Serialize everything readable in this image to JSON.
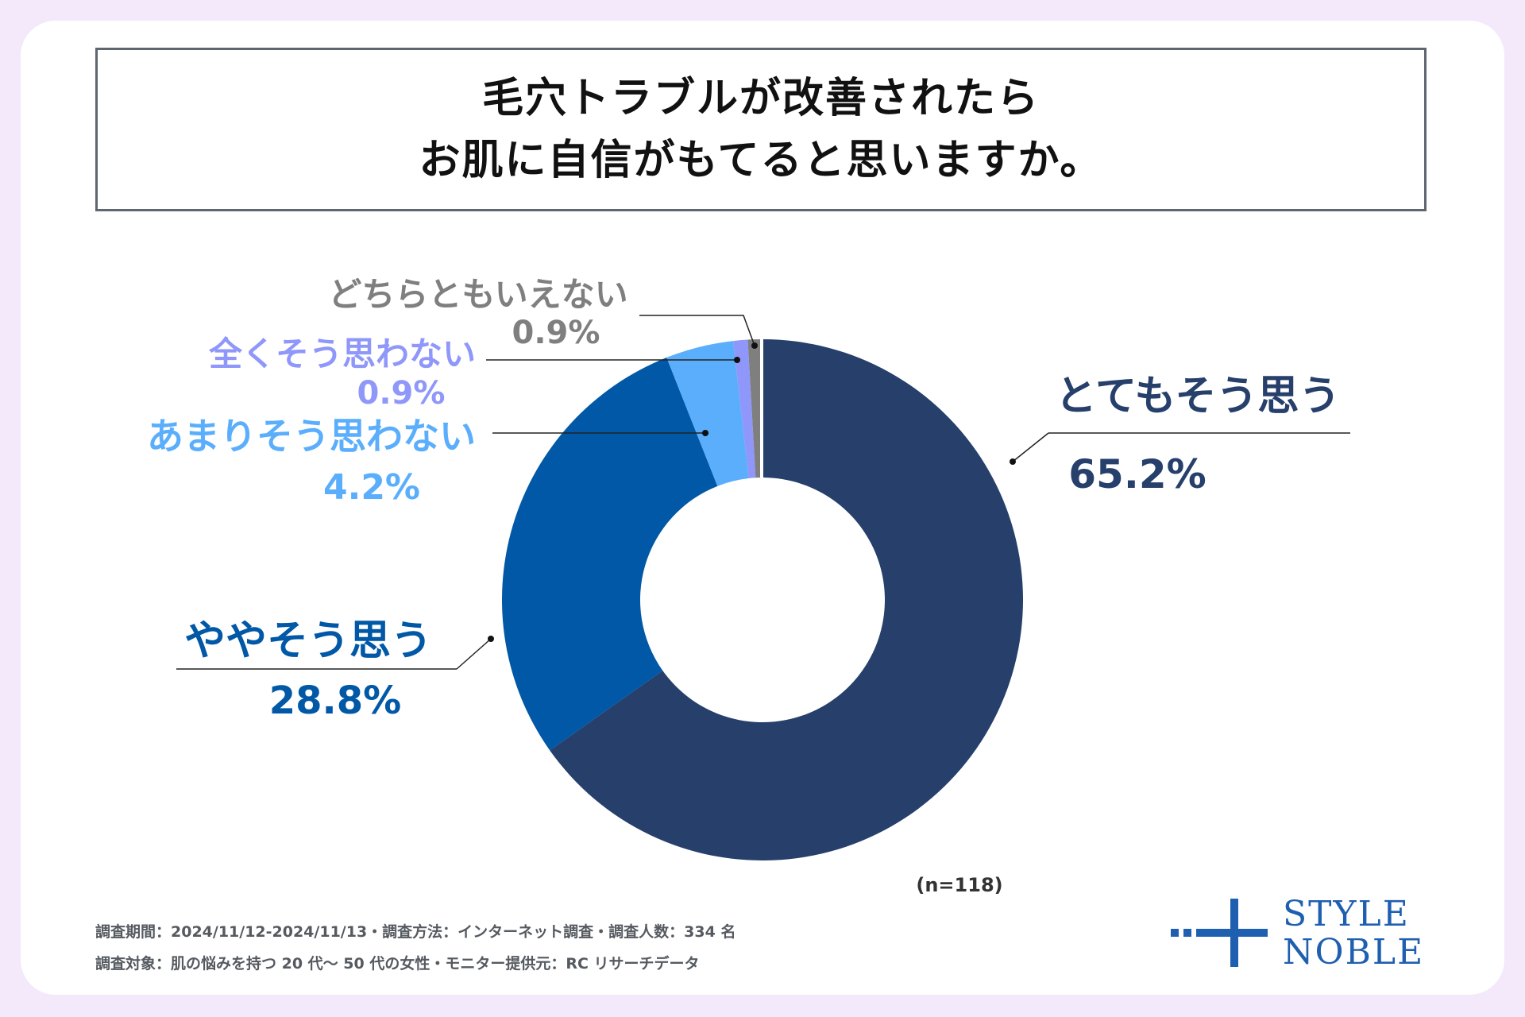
{
  "chart_data": {
    "type": "pie",
    "title_lines": [
      "毛穴トラブルが改善されたら",
      "お肌に自信がもてると思いますか。"
    ],
    "categories": [
      "とてもそう思う",
      "ややそう思う",
      "あまりそう思わない",
      "全くそう思わない",
      "どちらともいえない"
    ],
    "values": [
      65.2,
      28.8,
      4.2,
      0.9,
      0.9
    ],
    "value_labels": [
      "65.2%",
      "28.8%",
      "4.2%",
      "0.9%",
      "0.9%"
    ],
    "colors": [
      "#263f6b",
      "#0058a6",
      "#5aaefc",
      "#8f97fa",
      "#7f7f7f"
    ],
    "sample_note": "(n=118)"
  },
  "footer": {
    "line1": "調査期間：2024/11/12-2024/11/13・調査方法：インターネット調査・調査人数：334 名",
    "line2": "調査対象：肌の悩みを持つ 20 代〜 50 代の女性・モニター提供元：RC リサーチデータ"
  },
  "logo": {
    "line1": "STYLE",
    "line2": "NOBLE"
  }
}
